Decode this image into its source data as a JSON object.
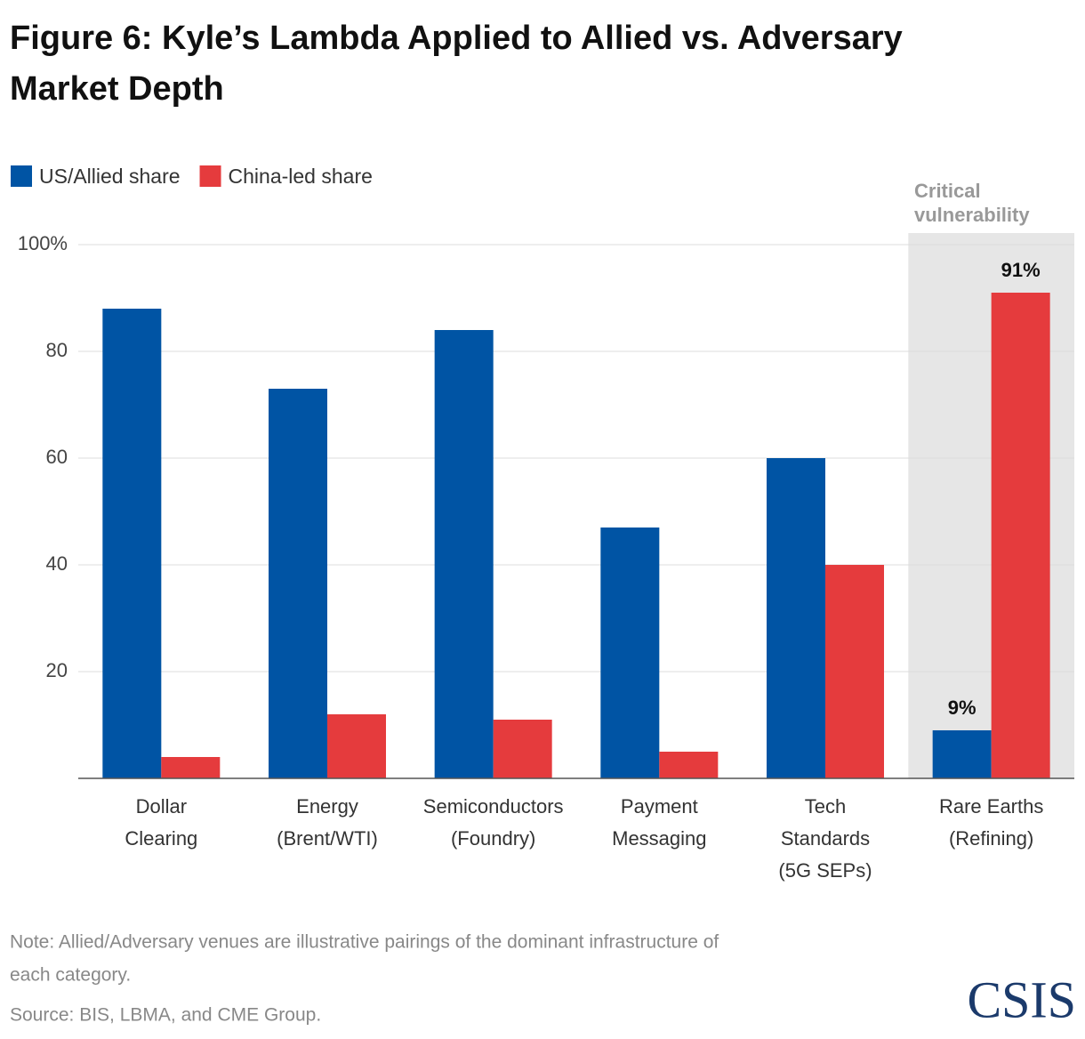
{
  "chart_data": {
    "type": "bar",
    "title": [
      "Figure 6: Kyle’s Lambda Applied to Allied vs. Adversary",
      "Market Depth"
    ],
    "categories": [
      [
        "Dollar",
        "Clearing"
      ],
      [
        "Energy",
        "(Brent/WTI)"
      ],
      [
        "Semiconductors",
        "(Foundry)"
      ],
      [
        "Payment",
        "Messaging"
      ],
      [
        "Tech",
        "Standards",
        "(5G SEPs)"
      ],
      [
        "Rare Earths",
        "(Refining)"
      ]
    ],
    "series": [
      {
        "name": "US/Allied share",
        "color": "#0054a4",
        "values": [
          88,
          73,
          84,
          47,
          60,
          9
        ],
        "value_labels": [
          null,
          null,
          null,
          null,
          null,
          "9%"
        ]
      },
      {
        "name": "China-led share",
        "color": "#e53b3d",
        "values": [
          4,
          12,
          11,
          5,
          40,
          91
        ],
        "value_labels": [
          null,
          null,
          null,
          null,
          null,
          "91%"
        ]
      }
    ],
    "ylim": [
      0,
      100
    ],
    "yticks": [
      {
        "value": 100,
        "label": "100%"
      },
      80,
      60,
      40,
      20
    ],
    "grid": true,
    "legend": "top-left",
    "annotation": [
      "Critical",
      "vulnerability"
    ],
    "note": [
      "Note: Allied/Adversary venues are illustrative pairings of the dominant infrastructure of",
      "each category."
    ],
    "source": "Source: BIS, LBMA, and CME Group.",
    "logo": "CSIS"
  }
}
